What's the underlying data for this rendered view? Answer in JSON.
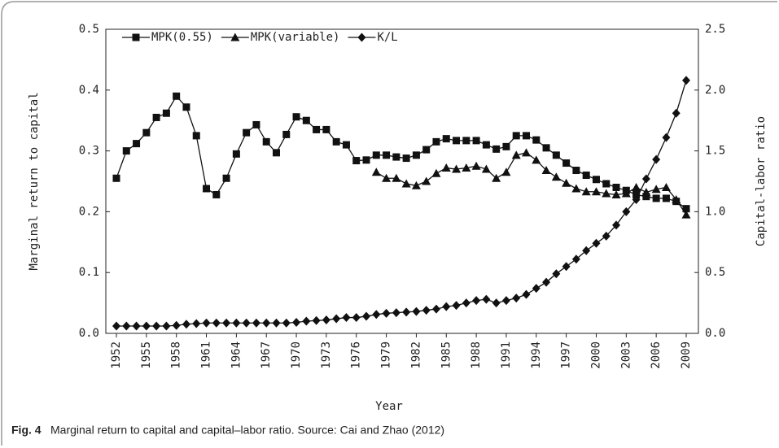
{
  "chart_data": {
    "type": "line",
    "caption_label": "Fig. 4",
    "caption": "Marginal return to capital and capital–labor ratio. Source: Cai and Zhao (2012)",
    "xlabel": "Year",
    "ylabel": "Marginal return to capital",
    "y2label": "Capital-labor ratio",
    "x": [
      1952,
      1953,
      1954,
      1955,
      1956,
      1957,
      1958,
      1959,
      1960,
      1961,
      1962,
      1963,
      1964,
      1965,
      1966,
      1967,
      1968,
      1969,
      1970,
      1971,
      1972,
      1973,
      1974,
      1975,
      1976,
      1977,
      1978,
      1979,
      1980,
      1981,
      1982,
      1983,
      1984,
      1985,
      1986,
      1987,
      1988,
      1989,
      1990,
      1991,
      1992,
      1993,
      1994,
      1995,
      1996,
      1997,
      1998,
      1999,
      2000,
      2001,
      2002,
      2003,
      2004,
      2005,
      2006,
      2007,
      2008,
      2009
    ],
    "xlim": [
      1952,
      2009
    ],
    "xticks": [
      1952,
      1955,
      1958,
      1961,
      1964,
      1967,
      1970,
      1973,
      1976,
      1979,
      1982,
      1985,
      1988,
      1991,
      1994,
      1997,
      2000,
      2003,
      2006,
      2009
    ],
    "ylim": [
      0,
      0.5
    ],
    "yticks": [
      {
        "value": 0,
        "label": "0.0"
      },
      0.1,
      0.2,
      0.3,
      0.4,
      0.5
    ],
    "y2lim": [
      0,
      2.5
    ],
    "y2ticks": [
      {
        "value": 0,
        "label": "0.0"
      },
      0.5,
      {
        "value": 1,
        "label": "1.0"
      },
      1.5,
      {
        "value": 2,
        "label": "2.0"
      },
      2.5
    ],
    "legend": "upper left",
    "series": [
      {
        "name": "MPK(0.55)",
        "color": "#111111",
        "marker": "square",
        "values": [
          0.255,
          0.3,
          0.312,
          0.33,
          0.355,
          0.362,
          0.39,
          0.372,
          0.325,
          0.238,
          0.228,
          0.255,
          0.295,
          0.33,
          0.343,
          0.315,
          0.297,
          0.327,
          0.356,
          0.35,
          0.335,
          0.335,
          0.315,
          0.31,
          0.284,
          0.285,
          0.293,
          0.293,
          0.29,
          0.288,
          0.293,
          0.302,
          0.315,
          0.32,
          0.317,
          0.317,
          0.317,
          0.31,
          0.303,
          0.307,
          0.325,
          0.325,
          0.318,
          0.305,
          0.293,
          0.28,
          0.268,
          0.26,
          0.253,
          0.246,
          0.24,
          0.235,
          0.228,
          0.225,
          0.222,
          0.222,
          0.217,
          0.205
        ]
      },
      {
        "name": "MPK(variable)",
        "color": "#111111",
        "marker": "triangle",
        "values": [
          null,
          null,
          null,
          null,
          null,
          null,
          null,
          null,
          null,
          null,
          null,
          null,
          null,
          null,
          null,
          null,
          null,
          null,
          null,
          null,
          null,
          null,
          null,
          null,
          null,
          null,
          0.265,
          0.255,
          0.255,
          0.246,
          0.243,
          0.25,
          0.263,
          0.272,
          0.27,
          0.272,
          0.275,
          0.27,
          0.255,
          0.265,
          0.293,
          0.297,
          0.285,
          0.268,
          0.257,
          0.247,
          0.238,
          0.233,
          0.233,
          0.23,
          0.228,
          0.23,
          0.24,
          0.232,
          0.237,
          0.24,
          0.22,
          0.195
        ]
      },
      {
        "name": "K/L",
        "color": "#111111",
        "marker": "diamond",
        "axis": "y2",
        "values": [
          0.06,
          0.06,
          0.06,
          0.06,
          0.06,
          0.06,
          0.065,
          0.075,
          0.08,
          0.085,
          0.085,
          0.085,
          0.085,
          0.085,
          0.085,
          0.085,
          0.085,
          0.085,
          0.09,
          0.1,
          0.105,
          0.11,
          0.12,
          0.13,
          0.13,
          0.14,
          0.155,
          0.165,
          0.17,
          0.175,
          0.18,
          0.19,
          0.2,
          0.22,
          0.23,
          0.25,
          0.27,
          0.28,
          0.25,
          0.27,
          0.29,
          0.32,
          0.37,
          0.42,
          0.49,
          0.55,
          0.61,
          0.68,
          0.74,
          0.8,
          0.89,
          1.0,
          1.1,
          1.27,
          1.43,
          1.61,
          1.81,
          2.08
        ]
      }
    ]
  }
}
